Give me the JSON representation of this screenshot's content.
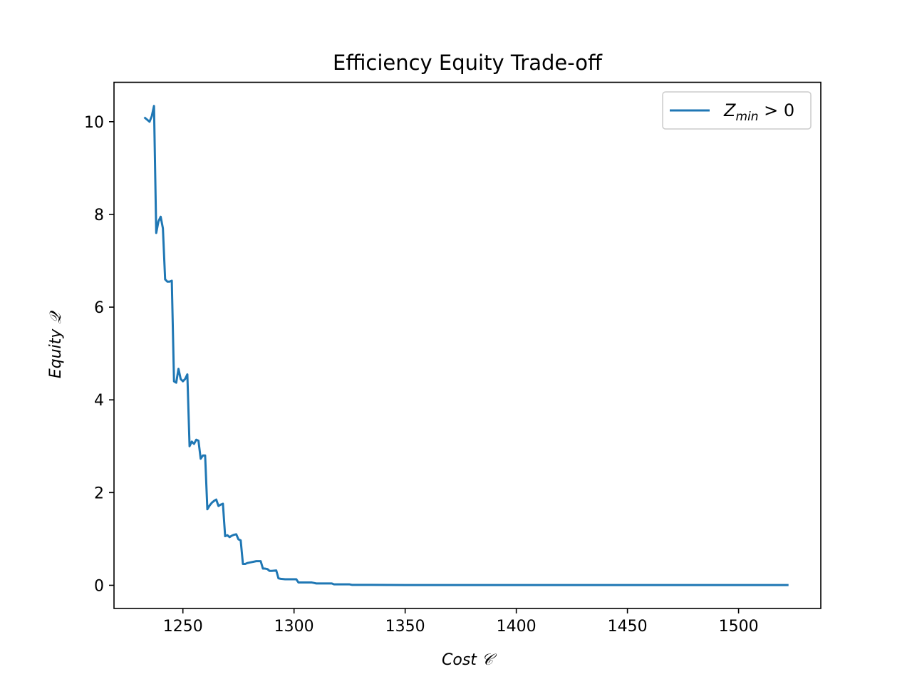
{
  "chart_data": {
    "type": "line",
    "title": "Efficiency Equity Trade-off",
    "xlabel": "Cost 𝒞",
    "ylabel": "Equity 𝒬",
    "xlim": [
      1219,
      1537
    ],
    "ylim": [
      -0.5,
      10.85
    ],
    "xticks": [
      1250,
      1300,
      1350,
      1400,
      1450,
      1500
    ],
    "yticks": [
      0,
      2,
      4,
      6,
      8,
      10
    ],
    "grid": false,
    "legend_position": "top-right",
    "line_color": "#1f77b4",
    "series": [
      {
        "name": "Z_min > 0",
        "legend_main": "Z",
        "legend_sub": "min",
        "legend_rest": " > 0",
        "x": [
          1233,
          1235,
          1236,
          1237,
          1238,
          1239,
          1240,
          1241,
          1242,
          1243,
          1244,
          1245,
          1246,
          1247,
          1248,
          1249,
          1250,
          1251,
          1252,
          1253,
          1254,
          1255,
          1256,
          1257,
          1258,
          1259,
          1260,
          1261,
          1262,
          1263,
          1264,
          1265,
          1266,
          1267,
          1268,
          1269,
          1270,
          1271,
          1272,
          1273,
          1274,
          1275,
          1276,
          1277,
          1278,
          1279,
          1280,
          1283,
          1285,
          1286,
          1287,
          1288,
          1289,
          1290,
          1292,
          1293,
          1294,
          1296,
          1301,
          1302,
          1308,
          1309,
          1310,
          1317,
          1318,
          1325,
          1326,
          1335,
          1350,
          1400,
          1450,
          1500,
          1522
        ],
        "y": [
          10.08,
          10.0,
          10.12,
          10.34,
          7.6,
          7.85,
          7.95,
          7.7,
          6.6,
          6.55,
          6.55,
          6.57,
          4.4,
          4.37,
          4.67,
          4.45,
          4.4,
          4.45,
          4.55,
          3.0,
          3.1,
          3.05,
          3.14,
          3.12,
          2.73,
          2.8,
          2.8,
          1.64,
          1.72,
          1.78,
          1.82,
          1.85,
          1.71,
          1.74,
          1.76,
          1.06,
          1.08,
          1.04,
          1.07,
          1.09,
          1.1,
          0.99,
          0.97,
          0.46,
          0.46,
          0.48,
          0.49,
          0.52,
          0.52,
          0.36,
          0.36,
          0.35,
          0.31,
          0.31,
          0.32,
          0.15,
          0.14,
          0.13,
          0.13,
          0.06,
          0.06,
          0.05,
          0.04,
          0.04,
          0.02,
          0.02,
          0.01,
          0.01,
          0.005,
          0.005,
          0.005,
          0.005,
          0.005
        ]
      }
    ]
  }
}
